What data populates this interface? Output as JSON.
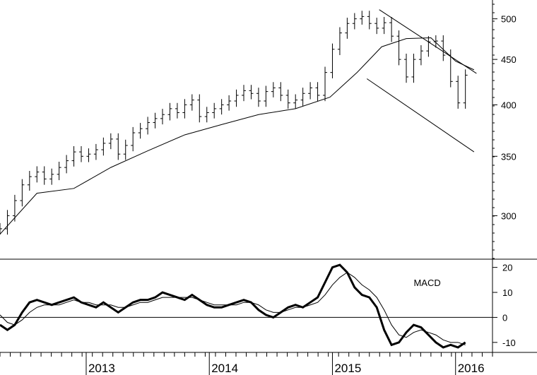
{
  "chart_data": [
    {
      "type": "ohlc",
      "panel": "price",
      "scale": "log",
      "ylim": [
        268,
        525
      ],
      "yticks": [
        300,
        350,
        400,
        450,
        500
      ],
      "ytick_labels": [
        "300",
        "350",
        "400",
        "450",
        "500"
      ],
      "xlim": [
        2012.3,
        2016.3
      ],
      "grid": false,
      "legend": "none",
      "series": [
        {
          "x": [
            2012.3,
            2012.36,
            2012.42,
            2012.48,
            2012.54,
            2012.6,
            2012.66,
            2012.72,
            2012.78,
            2012.84,
            2012.9,
            2012.96,
            2013.02,
            2013.08,
            2013.14,
            2013.2,
            2013.26,
            2013.32,
            2013.38,
            2013.44,
            2013.5,
            2013.56,
            2013.62,
            2013.68,
            2013.74,
            2013.8,
            2013.86,
            2013.92,
            2013.98,
            2014.04,
            2014.1,
            2014.16,
            2014.22,
            2014.28,
            2014.34,
            2014.4,
            2014.46,
            2014.52,
            2014.58,
            2014.64,
            2014.7,
            2014.76,
            2014.82,
            2014.88,
            2014.94,
            2015.0,
            2015.06,
            2015.12,
            2015.18,
            2015.24,
            2015.3,
            2015.36,
            2015.42,
            2015.48,
            2015.54,
            2015.6,
            2015.66,
            2015.72,
            2015.78,
            2015.84,
            2015.9,
            2015.96,
            2016.02,
            2016.08
          ],
          "close": [
            290,
            300,
            312,
            325,
            332,
            336,
            330,
            334,
            340,
            346,
            354,
            350,
            352,
            356,
            362,
            366,
            352,
            360,
            372,
            376,
            382,
            386,
            390,
            396,
            392,
            400,
            405,
            388,
            392,
            396,
            400,
            404,
            410,
            415,
            412,
            404,
            414,
            418,
            410,
            402,
            405,
            412,
            418,
            410,
            435,
            462,
            482,
            494,
            500,
            503,
            494,
            488,
            495,
            478,
            450,
            430,
            450,
            460,
            471,
            472,
            455,
            425,
            402,
            432
          ]
        },
        {
          "name": "trend-line",
          "x": [
            2012.3,
            2012.6,
            2012.9,
            2013.2,
            2013.5,
            2013.8,
            2014.1,
            2014.4,
            2014.7,
            2014.98,
            2015.2,
            2015.4,
            2015.6,
            2015.8,
            2016.0,
            2016.15
          ],
          "close": [
            286,
            318,
            322,
            340,
            355,
            370,
            380,
            390,
            396,
            408,
            435,
            465,
            475,
            476,
            448,
            438
          ]
        }
      ]
    },
    {
      "type": "line",
      "panel": "indicator",
      "title": "MACD",
      "ylim": [
        -14,
        23
      ],
      "yticks": [
        -10,
        0,
        10,
        20
      ],
      "ytick_labels": [
        "-10",
        "0",
        "10",
        "20"
      ],
      "xlim": [
        2012.3,
        2016.3
      ],
      "grid": false,
      "zero_line": true,
      "series": [
        {
          "x": [
            2012.3,
            2012.36,
            2012.42,
            2012.48,
            2012.54,
            2012.6,
            2012.66,
            2012.72,
            2012.78,
            2012.84,
            2012.9,
            2012.96,
            2013.02,
            2013.08,
            2013.14,
            2013.2,
            2013.26,
            2013.32,
            2013.38,
            2013.44,
            2013.5,
            2013.56,
            2013.62,
            2013.68,
            2013.74,
            2013.8,
            2013.86,
            2013.92,
            2013.98,
            2014.04,
            2014.1,
            2014.16,
            2014.22,
            2014.28,
            2014.34,
            2014.4,
            2014.46,
            2014.52,
            2014.58,
            2014.64,
            2014.7,
            2014.76,
            2014.82,
            2014.88,
            2014.94,
            2015.0,
            2015.06,
            2015.12,
            2015.18,
            2015.24,
            2015.3,
            2015.36,
            2015.42,
            2015.48,
            2015.54,
            2015.6,
            2015.66,
            2015.72,
            2015.78,
            2015.84,
            2015.9,
            2015.96,
            2016.02,
            2016.08
          ],
          "values": [
            -3,
            -5,
            -3,
            2,
            6,
            7,
            6,
            5,
            6,
            7,
            8,
            6,
            5,
            4,
            6,
            4,
            2,
            4,
            6,
            7,
            7,
            8,
            10,
            9,
            8,
            7,
            9,
            7,
            5,
            4,
            4,
            5,
            6,
            7,
            6,
            3,
            1,
            0,
            2,
            4,
            5,
            4,
            6,
            8,
            14,
            20,
            21,
            18,
            12,
            9,
            8,
            4,
            -5,
            -11,
            -10,
            -6,
            -3,
            -4,
            -7,
            -10,
            -12,
            -11,
            -12,
            -10
          ]
        },
        {
          "name": "signal",
          "x": [
            2012.3,
            2012.36,
            2012.42,
            2012.48,
            2012.54,
            2012.6,
            2012.66,
            2012.72,
            2012.78,
            2012.84,
            2012.9,
            2012.96,
            2013.02,
            2013.08,
            2013.14,
            2013.2,
            2013.26,
            2013.32,
            2013.38,
            2013.44,
            2013.5,
            2013.56,
            2013.62,
            2013.68,
            2013.74,
            2013.8,
            2013.86,
            2013.92,
            2013.98,
            2014.04,
            2014.1,
            2014.16,
            2014.22,
            2014.28,
            2014.34,
            2014.4,
            2014.46,
            2014.52,
            2014.58,
            2014.64,
            2014.7,
            2014.76,
            2014.82,
            2014.88,
            2014.94,
            2015.0,
            2015.06,
            2015.12,
            2015.18,
            2015.24,
            2015.3,
            2015.36,
            2015.42,
            2015.48,
            2015.54,
            2015.6,
            2015.66,
            2015.72,
            2015.78,
            2015.84,
            2015.9,
            2015.96,
            2016.02,
            2016.08
          ],
          "values": [
            1,
            -2,
            -3,
            -1,
            2,
            4,
            5,
            5,
            5,
            6,
            7,
            6,
            6,
            5,
            5,
            5,
            4,
            4,
            5,
            6,
            6,
            7,
            8,
            8,
            8,
            8,
            8,
            7,
            6,
            5,
            5,
            5,
            5,
            6,
            6,
            5,
            3,
            2,
            2,
            3,
            4,
            4,
            5,
            6,
            9,
            13,
            16,
            18,
            16,
            13,
            11,
            8,
            3,
            -3,
            -7,
            -8,
            -6,
            -5,
            -6,
            -7,
            -9,
            -10,
            -10,
            -11
          ]
        }
      ]
    }
  ],
  "x_axis": {
    "ticks": [
      2013,
      2014,
      2015,
      2016
    ],
    "tick_labels": [
      "2013",
      "2014",
      "2015",
      "2016"
    ]
  }
}
